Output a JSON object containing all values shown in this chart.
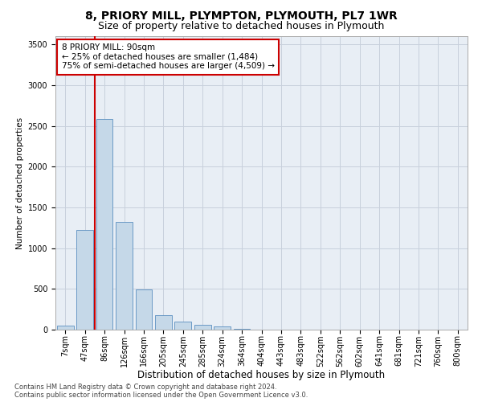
{
  "title1": "8, PRIORY MILL, PLYMPTON, PLYMOUTH, PL7 1WR",
  "title2": "Size of property relative to detached houses in Plymouth",
  "xlabel": "Distribution of detached houses by size in Plymouth",
  "ylabel": "Number of detached properties",
  "footer1": "Contains HM Land Registry data © Crown copyright and database right 2024.",
  "footer2": "Contains public sector information licensed under the Open Government Licence v3.0.",
  "annotation_line1": "8 PRIORY MILL: 90sqm",
  "annotation_line2": "← 25% of detached houses are smaller (1,484)",
  "annotation_line3": "75% of semi-detached houses are larger (4,509) →",
  "bar_color": "#c5d8e8",
  "bar_edge_color": "#5a8fc0",
  "marker_line_color": "#cc0000",
  "categories": [
    "7sqm",
    "47sqm",
    "86sqm",
    "126sqm",
    "166sqm",
    "205sqm",
    "245sqm",
    "285sqm",
    "324sqm",
    "364sqm",
    "404sqm",
    "443sqm",
    "483sqm",
    "522sqm",
    "562sqm",
    "602sqm",
    "641sqm",
    "681sqm",
    "721sqm",
    "760sqm",
    "800sqm"
  ],
  "values": [
    50,
    1220,
    2580,
    1320,
    490,
    175,
    100,
    55,
    35,
    10,
    0,
    0,
    0,
    0,
    0,
    0,
    0,
    0,
    0,
    0,
    0
  ],
  "ylim": [
    0,
    3600
  ],
  "yticks": [
    0,
    500,
    1000,
    1500,
    2000,
    2500,
    3000,
    3500
  ],
  "background_color": "#ffffff",
  "plot_bg_color": "#e8eef5",
  "grid_color": "#c8d0dc",
  "title1_fontsize": 10,
  "title2_fontsize": 9,
  "xlabel_fontsize": 8.5,
  "ylabel_fontsize": 7.5,
  "tick_fontsize": 7,
  "annotation_fontsize": 7.5,
  "footer_fontsize": 6
}
